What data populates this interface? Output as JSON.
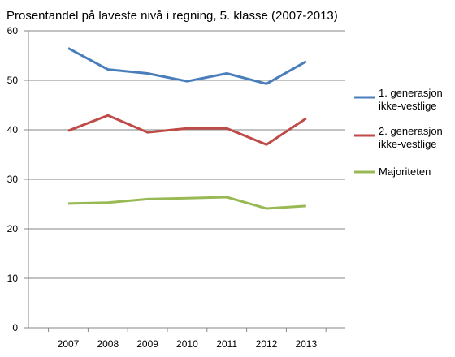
{
  "chart_data": {
    "type": "line",
    "title": "Prosentandel på laveste nivå i regning, 5. klasse (2007-2013)",
    "xlabel": "",
    "ylabel": "",
    "categories": [
      "2007",
      "2008",
      "2009",
      "2010",
      "2011",
      "2012",
      "2013"
    ],
    "ylim": [
      0,
      60
    ],
    "yticks": [
      0,
      10,
      20,
      30,
      40,
      50,
      60
    ],
    "grid": true,
    "legend_position": "right",
    "series": [
      {
        "name_lines": [
          "1. generasjon",
          "ikke-vestlige"
        ],
        "color": "#4a7ebb",
        "values": [
          56.5,
          52.2,
          51.4,
          49.8,
          51.4,
          49.3,
          53.8
        ]
      },
      {
        "name_lines": [
          "2. generasjon",
          "ikke-vestlige"
        ],
        "color": "#be4b48",
        "values": [
          39.8,
          42.9,
          39.5,
          40.3,
          40.3,
          37.0,
          42.3
        ]
      },
      {
        "name_lines": [
          "Majoriteten"
        ],
        "color": "#98b954",
        "values": [
          25.1,
          25.3,
          26.0,
          26.2,
          26.4,
          24.1,
          24.6
        ]
      }
    ]
  }
}
